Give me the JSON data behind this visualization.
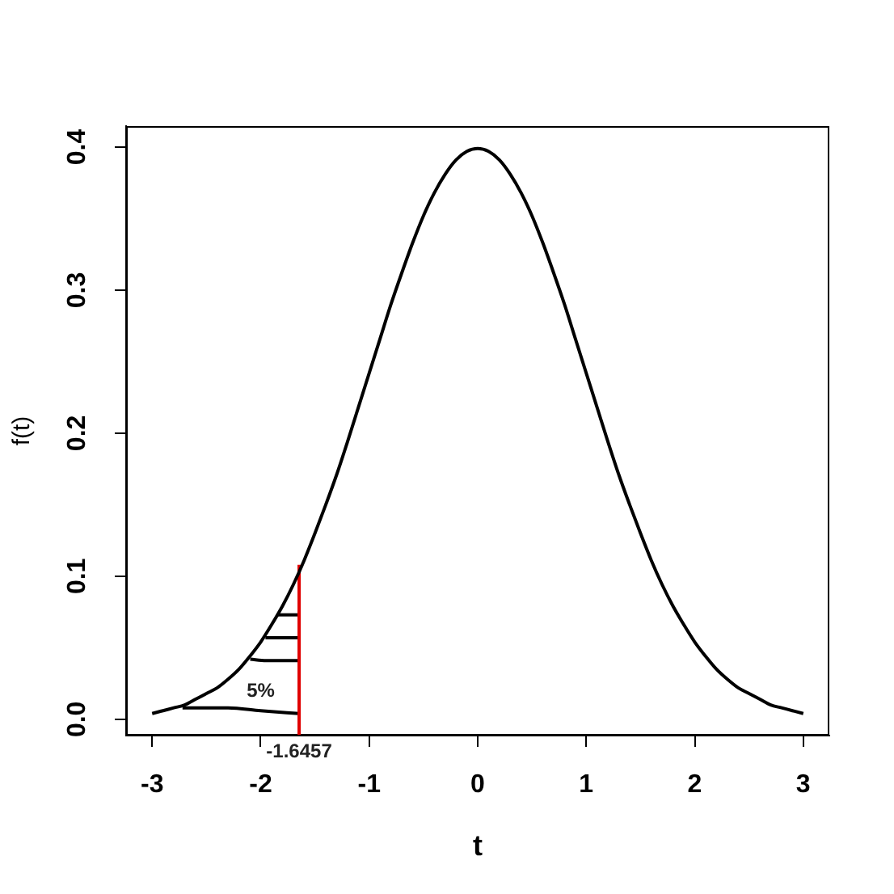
{
  "chart_data": {
    "type": "line",
    "xlabel": "t",
    "ylabel": "f(t)",
    "xlim": [
      -3.24,
      3.24
    ],
    "xticks": [
      -3,
      -2,
      -1,
      0,
      1,
      2,
      3
    ],
    "ylim": [
      -0.0114,
      0.4147
    ],
    "yticks": [
      {
        "value": 0,
        "label": "0.0"
      },
      0.1,
      0.2,
      0.3,
      0.4
    ],
    "marker": "none",
    "series": [
      {
        "color": "#000000",
        "x": [
          -3.0,
          -2.9,
          -2.8,
          -2.7,
          -2.6,
          -2.5,
          -2.4,
          -2.3,
          -2.2,
          -2.1,
          -2.0,
          -1.9,
          -1.8,
          -1.7,
          -1.6,
          -1.5,
          -1.4,
          -1.3,
          -1.2,
          -1.1,
          -1.0,
          -0.9,
          -0.8,
          -0.7,
          -0.6,
          -0.5,
          -0.4,
          -0.3,
          -0.2,
          -0.1,
          0.0,
          0.1,
          0.2,
          0.3,
          0.4,
          0.5,
          0.6,
          0.7,
          0.8,
          0.9,
          1.0,
          1.1,
          1.2,
          1.3,
          1.4,
          1.5,
          1.6,
          1.7,
          1.8,
          1.9,
          2.0,
          2.1,
          2.2,
          2.3,
          2.4,
          2.5,
          2.6,
          2.7,
          2.8,
          2.9,
          3.0
        ],
        "values": [
          0.004,
          0.006,
          0.008,
          0.01,
          0.014,
          0.018,
          0.022,
          0.028,
          0.035,
          0.044,
          0.054,
          0.066,
          0.079,
          0.094,
          0.111,
          0.13,
          0.15,
          0.171,
          0.194,
          0.218,
          0.242,
          0.266,
          0.29,
          0.312,
          0.333,
          0.352,
          0.368,
          0.381,
          0.391,
          0.397,
          0.399,
          0.397,
          0.391,
          0.381,
          0.368,
          0.352,
          0.333,
          0.312,
          0.29,
          0.266,
          0.242,
          0.218,
          0.194,
          0.171,
          0.15,
          0.13,
          0.111,
          0.094,
          0.079,
          0.066,
          0.054,
          0.044,
          0.035,
          0.028,
          0.022,
          0.018,
          0.014,
          0.01,
          0.008,
          0.006,
          0.004
        ]
      },
      {
        "color": "#e00000",
        "x": [
          -1.6457,
          -1.6457
        ],
        "values": [
          -0.011,
          0.108
        ]
      },
      {
        "color": "#000000",
        "x": [
          -1.846,
          -1.6457
        ],
        "values": [
          0.073,
          0.073
        ]
      },
      {
        "color": "#000000",
        "x": [
          -1.956,
          -1.6457
        ],
        "values": [
          0.057,
          0.057
        ]
      },
      {
        "color": "#000000",
        "x": [
          -2.096,
          -1.95,
          -1.6457
        ],
        "values": [
          0.042,
          0.041,
          0.041
        ]
      },
      {
        "color": "#000000",
        "x": [
          -2.72,
          -2.3,
          -2.0,
          -1.6457
        ],
        "values": [
          0.008,
          0.008,
          0.006,
          0.004
        ]
      }
    ],
    "annotations": [
      {
        "text": "5%",
        "x": -2.0,
        "y": 0.006
      },
      {
        "text": "-1.6457",
        "x": -1.6457,
        "y": -0.011
      }
    ]
  }
}
